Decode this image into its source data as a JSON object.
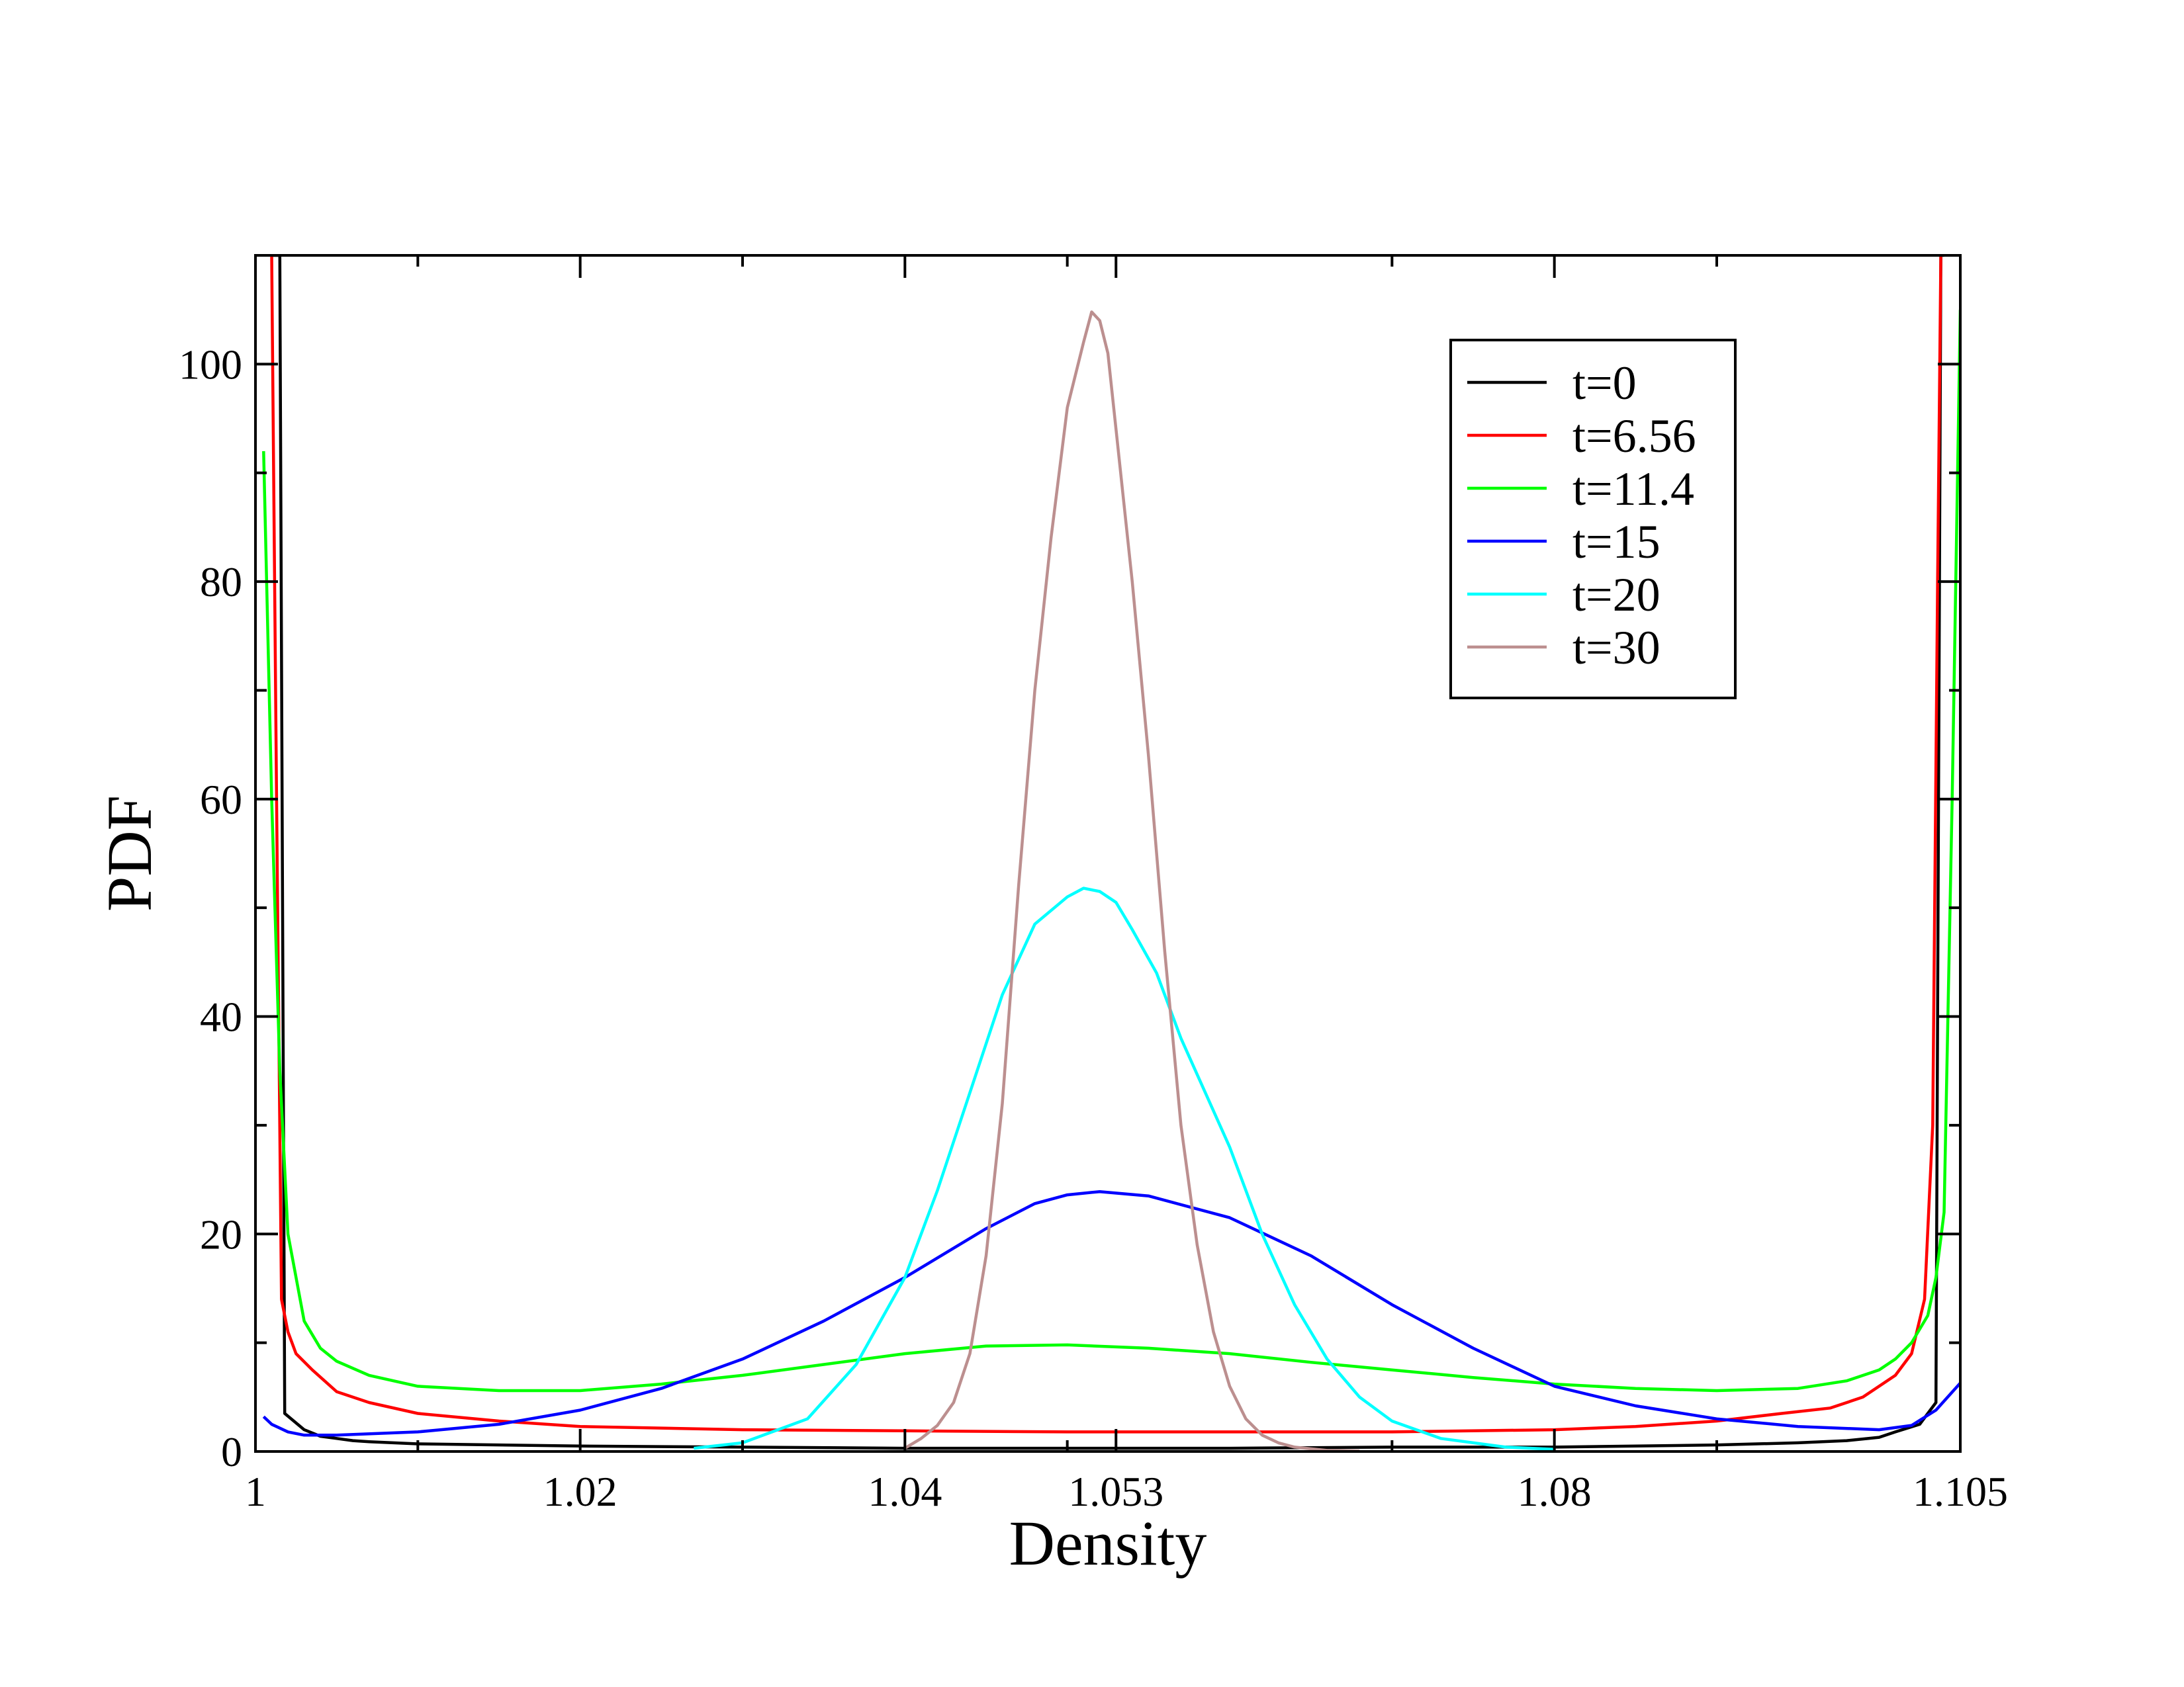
{
  "chart_data": {
    "type": "line",
    "xlabel": "Density",
    "ylabel": "PDF",
    "xlim": [
      1.0,
      1.105
    ],
    "ylim": [
      0,
      110
    ],
    "x_tick_values": [
      1.0,
      1.02,
      1.04,
      1.053,
      1.08,
      1.105
    ],
    "x_tick_labels": [
      "1",
      "1.02",
      "1.04",
      "1.053",
      "1.08",
      "1.105"
    ],
    "y_tick_values": [
      0,
      20,
      40,
      60,
      80,
      100
    ],
    "y_tick_labels": [
      "0",
      "20",
      "40",
      "60",
      "80",
      "100"
    ],
    "grid": false,
    "legend_position": "top-right",
    "series": [
      {
        "name": "t=0",
        "color": "#000000",
        "x": [
          1.001,
          1.0015,
          1.0018,
          1.003,
          1.004,
          1.005,
          1.006,
          1.007,
          1.01,
          1.015,
          1.02,
          1.03,
          1.04,
          1.05,
          1.06,
          1.07,
          1.08,
          1.09,
          1.095,
          1.098,
          1.1,
          1.101,
          1.1025,
          1.103,
          1.1035,
          1.1038,
          1.104
        ],
        "y": [
          110,
          110,
          3.5,
          2.0,
          1.4,
          1.2,
          1.0,
          0.9,
          0.7,
          0.6,
          0.5,
          0.4,
          0.3,
          0.3,
          0.3,
          0.4,
          0.4,
          0.6,
          0.8,
          1.0,
          1.3,
          1.8,
          2.5,
          3.5,
          4.5,
          110,
          110
        ]
      },
      {
        "name": "t=6.56",
        "color": "#ff0000",
        "x": [
          1.001,
          1.0013,
          1.0016,
          1.002,
          1.0025,
          1.0035,
          1.005,
          1.007,
          1.01,
          1.015,
          1.02,
          1.03,
          1.04,
          1.05,
          1.06,
          1.07,
          1.08,
          1.085,
          1.09,
          1.094,
          1.097,
          1.099,
          1.1,
          1.101,
          1.102,
          1.1028,
          1.1033,
          1.1036,
          1.1038
        ],
        "y": [
          110,
          60,
          14,
          11,
          9,
          7.5,
          5.5,
          4.5,
          3.5,
          2.8,
          2.3,
          2.0,
          1.9,
          1.8,
          1.8,
          1.8,
          2.0,
          2.3,
          2.8,
          3.5,
          4.0,
          5.0,
          6.0,
          7.0,
          9.0,
          14,
          30,
          80,
          110
        ]
      },
      {
        "name": "t=11.4",
        "color": "#00ff00",
        "x": [
          1.0005,
          1.001,
          1.0015,
          1.002,
          1.003,
          1.004,
          1.005,
          1.007,
          1.01,
          1.015,
          1.02,
          1.025,
          1.03,
          1.035,
          1.04,
          1.045,
          1.05,
          1.055,
          1.06,
          1.065,
          1.07,
          1.075,
          1.08,
          1.085,
          1.09,
          1.095,
          1.098,
          1.1,
          1.101,
          1.102,
          1.103,
          1.1035,
          1.104,
          1.1045,
          1.105
        ],
        "y": [
          92,
          60,
          35,
          20,
          12,
          9.5,
          8.3,
          7.0,
          6.0,
          5.6,
          5.6,
          6.2,
          7.0,
          8.0,
          9.0,
          9.7,
          9.8,
          9.5,
          9.0,
          8.2,
          7.5,
          6.8,
          6.2,
          5.8,
          5.6,
          5.8,
          6.5,
          7.5,
          8.5,
          10,
          12.5,
          16,
          22,
          60,
          105
        ]
      },
      {
        "name": "t=15",
        "color": "#0000ff",
        "x": [
          1.0005,
          1.001,
          1.002,
          1.003,
          1.005,
          1.01,
          1.015,
          1.02,
          1.025,
          1.03,
          1.035,
          1.04,
          1.045,
          1.048,
          1.05,
          1.052,
          1.055,
          1.06,
          1.065,
          1.07,
          1.075,
          1.08,
          1.085,
          1.09,
          1.095,
          1.1,
          1.102,
          1.1035,
          1.105
        ],
        "y": [
          3.2,
          2.5,
          1.8,
          1.5,
          1.5,
          1.8,
          2.5,
          3.8,
          5.8,
          8.5,
          12,
          16,
          20.5,
          22.8,
          23.6,
          23.9,
          23.5,
          21.5,
          18,
          13.5,
          9.5,
          6.0,
          4.2,
          3.0,
          2.3,
          2.0,
          2.4,
          3.8,
          6.3
        ]
      },
      {
        "name": "t=20",
        "color": "#00ffff",
        "x": [
          1.027,
          1.03,
          1.034,
          1.037,
          1.04,
          1.042,
          1.044,
          1.046,
          1.048,
          1.05,
          1.051,
          1.052,
          1.053,
          1.054,
          1.0555,
          1.057,
          1.06,
          1.062,
          1.064,
          1.066,
          1.068,
          1.07,
          1.073,
          1.077,
          1.08
        ],
        "y": [
          0.3,
          0.8,
          3,
          8,
          16,
          24,
          33,
          42,
          48.5,
          51,
          51.8,
          51.5,
          50.5,
          48,
          44,
          38,
          28,
          20,
          13.5,
          8.5,
          5,
          2.8,
          1.2,
          0.4,
          0.2
        ]
      },
      {
        "name": "t=30",
        "color": "#bc8f8f",
        "x": [
          1.04,
          1.041,
          1.042,
          1.043,
          1.044,
          1.045,
          1.046,
          1.047,
          1.048,
          1.049,
          1.05,
          1.051,
          1.0515,
          1.052,
          1.0525,
          1.053,
          1.054,
          1.055,
          1.056,
          1.057,
          1.058,
          1.059,
          1.06,
          1.061,
          1.062,
          1.063,
          1.064,
          1.066,
          1.068
        ],
        "y": [
          0.3,
          1.2,
          2.4,
          4.5,
          9,
          18,
          32,
          52,
          70,
          84,
          96,
          102,
          104.8,
          104,
          101,
          94,
          80,
          64,
          46,
          30,
          19,
          11,
          6,
          3,
          1.5,
          0.8,
          0.4,
          0.1,
          0.05
        ]
      }
    ]
  }
}
